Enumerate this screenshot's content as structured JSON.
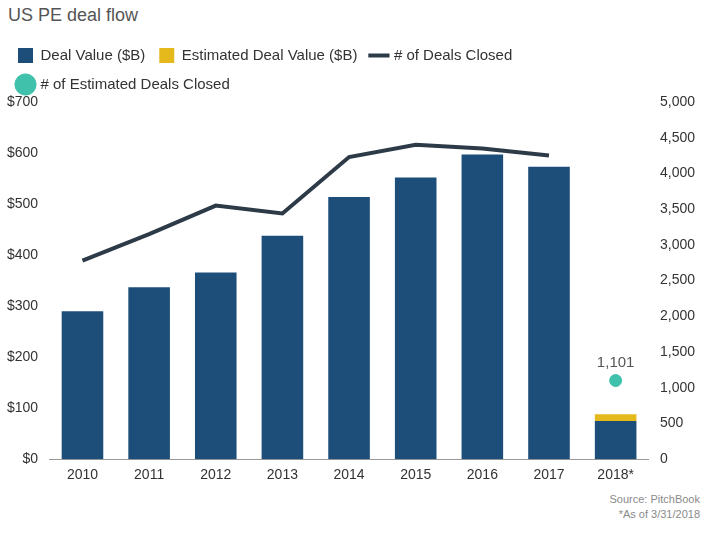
{
  "chart_data": {
    "type": "bar",
    "title": "US PE deal flow",
    "categories": [
      "2010",
      "2011",
      "2012",
      "2013",
      "2014",
      "2015",
      "2016",
      "2017",
      "2018*"
    ],
    "series": [
      {
        "name": "Deal Value ($B)",
        "type": "bar",
        "color": "#1d4e7a",
        "values": [
          290,
          337,
          366,
          438,
          514,
          552,
          597,
          573,
          75
        ]
      },
      {
        "name": "Estimated Deal Value ($B)",
        "type": "bar",
        "color": "#e5b81c",
        "values": [
          null,
          null,
          null,
          null,
          null,
          null,
          null,
          null,
          13
        ]
      },
      {
        "name": "# of Deals Closed",
        "type": "line",
        "color": "#2d3a47",
        "axis": "y2",
        "values": [
          2780,
          3150,
          3550,
          3440,
          4230,
          4400,
          4350,
          4250,
          null
        ]
      },
      {
        "name": "# of Estimated Deals Closed",
        "type": "scatter",
        "color": "#40c1ac",
        "axis": "y2",
        "marker": "circle",
        "data_labels": true,
        "values": [
          null,
          null,
          null,
          null,
          null,
          null,
          null,
          null,
          1101
        ],
        "value_labels": [
          null,
          null,
          null,
          null,
          null,
          null,
          null,
          null,
          "1,101"
        ]
      }
    ],
    "stacked": true,
    "ylim": [
      0,
      700
    ],
    "yticks": [
      {
        "value": 0,
        "label": "$0"
      },
      {
        "value": 100,
        "label": "$100"
      },
      {
        "value": 200,
        "label": "$200"
      },
      {
        "value": 300,
        "label": "$300"
      },
      {
        "value": 400,
        "label": "$400"
      },
      {
        "value": 500,
        "label": "$500"
      },
      {
        "value": 600,
        "label": "$600"
      },
      {
        "value": 700,
        "label": "$700"
      }
    ],
    "y2lim": [
      0,
      5000
    ],
    "y2ticks": [
      0,
      500,
      {
        "value": 1000,
        "label": "1,000"
      },
      {
        "value": 1500,
        "label": "1,500"
      },
      {
        "value": 2000,
        "label": "2,000"
      },
      {
        "value": 2500,
        "label": "2,500"
      },
      {
        "value": 3000,
        "label": "3,000"
      },
      {
        "value": 3500,
        "label": "3,500"
      },
      {
        "value": 4000,
        "label": "4,000"
      },
      {
        "value": 4500,
        "label": "4,500"
      },
      {
        "value": 5000,
        "label": "5,000"
      }
    ],
    "grid": false,
    "legend": "top",
    "annotations": [
      "Source: PitchBook",
      "*As of 3/31/2018"
    ]
  }
}
